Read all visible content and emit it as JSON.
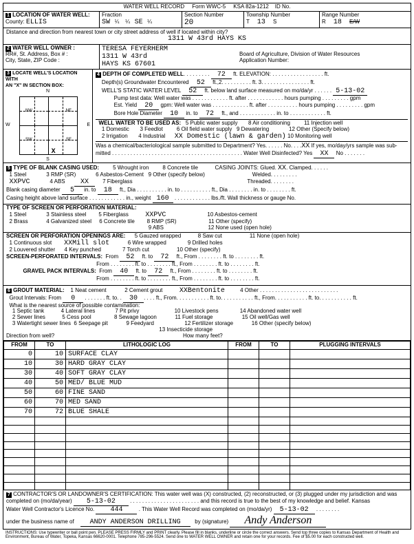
{
  "header": {
    "title": "WATER WELL RECORD",
    "form": "Form WWC-5",
    "ksa": "KSA 82a-1212",
    "id": "ID No."
  },
  "loc": {
    "label": "LOCATION OF WATER WELL:",
    "county_label": "County:",
    "county": "ELLIS",
    "fraction": "Fraction",
    "f1": "SW",
    "q1": "¼",
    "f2": "¼",
    "f3": "SE",
    "q3": "¼",
    "sec_label": "Section Number",
    "sec": "20",
    "twp_label": "Township Number",
    "twp_t": "T",
    "twp": "13",
    "twp_s": "S",
    "rng_label": "Range Number",
    "rng_r": "R",
    "rng": "18",
    "rng_ew": "E/W"
  },
  "dist": {
    "label": "Distance and direction from nearest town or city street address of well if located within city?",
    "value": "1311 W 43rd   HAYS  KS"
  },
  "owner": {
    "label": "WATER WELL OWNER :",
    "name": "TERESA FEYERHERM",
    "addr_label": "RR#, St. Address, Box # :",
    "addr": "1311 W 43rd",
    "csz_label": "City, State, ZIP Code :",
    "csz": "HAYS KS  67601",
    "board": "Board of Agriculture, Division of Water Resources",
    "appno": "Application Number:"
  },
  "sec3": {
    "label": "LOCATE WELL'S LOCATION WITH",
    "sub": "AN \"X\" IN SECTION BOX:",
    "n": "N",
    "s": "S",
    "e": "E",
    "w": "W",
    "nw": "NW",
    "ne": "NE",
    "sw": "SW",
    "se": "SE",
    "x": "X"
  },
  "sec4": {
    "label": "DEPTH OF COMPLETED WELL",
    "depth": "72",
    "elev": "ft. ELEVATION:",
    "gw": "Depth(s) Groundwater Encountered",
    "gw1": "52",
    "swl_label": "WELL'S STATIC WATER LEVEL",
    "swl": "52",
    "swl_after": "ft. below land surface measured on mo/da/yr",
    "swl_date": "5-13-02",
    "pump": "Pump test data:  Well water was",
    "after": "ft. after",
    "hours": "hours pumping",
    "gpm": "gpm",
    "est_label": "Est. Yield",
    "est": "20",
    "est_unit": "gpm:  Well water was",
    "bore_label": "Bore Hole Diameter",
    "bore1": "10",
    "bore_in": "in. to",
    "bore2": "72",
    "bore_ft": "ft., and",
    "bore_into": "in. to",
    "bore_ft2": "ft.",
    "use_label": "WELL WATER TO BE USED AS:",
    "u5": "5 Public water supply",
    "u8": "8 Air conditioning",
    "u11": "11 Injection well",
    "u1": "1 Domestic",
    "u3": "3 Feedlot",
    "u6": "6 Oil field water supply",
    "u9": "9 Dewatering",
    "u12": "12 Other (Specify below)",
    "u2": "2 Irrigation",
    "u4": "4 Industrial",
    "u7": "XX Domestic (lawn & garden)",
    "u10": "10 Monitoring well",
    "chem": "Was a chemical/bacteriological sample submitted to Department? Yes. . . . . . No. . . .",
    "chem_x": "XX",
    "chem2": "If yes, mo/day/yrs sample was sub-",
    "mitted": "mitted",
    "disinfect": "Water Well Disinfected? Yes",
    "dis_x": "XX",
    "no": "No"
  },
  "sec5": {
    "label": "TYPE OF BLANK CASING USED:",
    "c1": "1 Steel",
    "c3": "3 RMP (SR)",
    "c5": "5 Wrought iron",
    "c8": "8 Concrete tile",
    "joints": "CASING JOINTS: Glued.",
    "jx": "XX",
    "clamped": ". Clamped",
    "c6": "6 Asbestos-Cement",
    "c9": "9 Other (specify below)",
    "welded": "Welded",
    "pvc": "XXPVC",
    "c4": "4 ABS",
    "pvc_x": "XX",
    "c7": "7 Fiberglass",
    "threaded": "Threaded",
    "bcd_label": "Blank casing diameter",
    "bcd1": "5",
    "bcd_in": "in. to",
    "bcd2": "18",
    "bcd_ft": "ft., Dia",
    "bcd_in2": "in. to",
    "bcd_ft2": "ft., Dia",
    "bcd_into2": "in. to",
    "bcd_ft3": "ft.",
    "ch_label": "Casing height above land surface",
    "ch_wt": "in., weight",
    "ch_wtv": "160",
    "ch_lbs": "lbs./ft. Wall thickness or gauge No.",
    "screen_label": "TYPE OF SCREEN OR PERFORATION MATERIAL:",
    "s1": "1 Steel",
    "s3": "3 Stainless steel",
    "s5": "5 Fiberglass",
    "s7": "XXPVC",
    "s10": "10 Asbestos-cement",
    "s2": "2 Brass",
    "s4": "4 Galvanized steel",
    "s6": "6 Concrete tile",
    "s8": "8 RMP (SR)",
    "s11": "11 Other (specify)",
    "s9": "9 ABS",
    "s12": "12 None used (open hole)",
    "open_label": "SCREEN OR PERFORATION OPENINGS ARE:",
    "o1": "1 Continuous slot",
    "o3": "XXMill slot",
    "o5": "5 Gauzed wrapped",
    "o8": "8 Saw cut",
    "o11": "11 None (open hole)",
    "o2": "2 Louvered shutter",
    "o4": "4 Key punched",
    "o6": "6 Wire wrapped",
    "o9": "9 Drilled holes",
    "o7": "7 Torch cut",
    "o10": "10 Other (specify)",
    "sperf_label": "SCREEN-PERFORATED INTERVALS:",
    "from": "From",
    "ft_to": "ft. to",
    "ft_from": "ft., From",
    "sp1a": "52",
    "sp1b": "72",
    "grav_label": "GRAVEL PACK INTERVALS:",
    "gp1a": "40",
    "gp1b": "72"
  },
  "sec6": {
    "label": "GROUT MATERIAL:",
    "g1": "1 Neat cement",
    "g2": "2 Cement grout",
    "g3": "XXBentonite",
    "g4": "4 Other",
    "gi_label": "Grout Intervals:  From",
    "gi1": "0",
    "gi2": "30",
    "contam": "What is the nearest source of possible contamination:",
    "c1": "1 Septic tank",
    "c4": "4 Lateral lines",
    "c7": "7 Pit privy",
    "c10": "10 Livestock pens",
    "c14": "14 Abandoned water well",
    "c2": "2 Sewer lines",
    "c5": "5 Cess pool",
    "c8": "8 Sewage lagoon",
    "c11": "11 Fuel storage",
    "c15": "15 Oil well/Gas well",
    "c3": "3 Watertight sewer lines",
    "c6": "6 Seepage pit",
    "c9": "9 Feedyard",
    "c12": "12 Fertilizer storage",
    "c16": "16 Other (specify below)",
    "c13": "13 Insecticide storage",
    "dir": "Direction from well?",
    "many": "How many feet?"
  },
  "log": {
    "h_from": "FROM",
    "h_to": "TO",
    "h_lith": "LITHOLOGIC LOG",
    "h_plug": "PLUGGING INTERVALS",
    "rows": [
      {
        "f": "0",
        "t": "10",
        "d": "SURFACE CLAY"
      },
      {
        "f": "10",
        "t": "30",
        "d": "HARD GRAY CLAY"
      },
      {
        "f": "30",
        "t": "40",
        "d": "SOFT GRAY CLAY"
      },
      {
        "f": "40",
        "t": "50",
        "d": "MED/ BLUE MUD"
      },
      {
        "f": "50",
        "t": "60",
        "d": "FINE SAND"
      },
      {
        "f": "60",
        "t": "70",
        "d": "MED SAND"
      },
      {
        "f": "70",
        "t": "72",
        "d": "BLUE SHALE"
      },
      {
        "f": "",
        "t": "",
        "d": ""
      },
      {
        "f": "",
        "t": "",
        "d": ""
      },
      {
        "f": "",
        "t": "",
        "d": ""
      },
      {
        "f": "",
        "t": "",
        "d": ""
      },
      {
        "f": "",
        "t": "",
        "d": ""
      },
      {
        "f": "",
        "t": "",
        "d": ""
      },
      {
        "f": "",
        "t": "",
        "d": ""
      },
      {
        "f": "",
        "t": "",
        "d": ""
      },
      {
        "f": "",
        "t": "",
        "d": ""
      }
    ]
  },
  "sec7": {
    "label": "CONTRACTOR'S OR LANDOWNER'S CERTIFICATION: This water well was (X) constructed, (2) reconstructed, or (3) plugged under my jurisdiction and was",
    "l2a": "completed on (mo/da/year)",
    "date1": "5-13-02",
    "l2b": "and this record is true to the best of my knowledge and belief. Kansas",
    "l3a": "Water Well Contractor's Licence No.",
    "lic": "444",
    "l3b": ". This Water Well Record was completed on (mo/da/yr)",
    "date2": "5-13-02",
    "l4a": "under the business name of",
    "biz": "ANDY ANDERSON DRILLING",
    "l4b": "by  (signature)",
    "sig": "Andy Anderson"
  },
  "footer": "INSTRUCTIONS: Use typewriter or ball point pen. PLEASE PRESS FIRMLY and PRINT clearly. Please fill in blanks, underline or circle the correct answers. Send top three copies to Kansas Department of Health and Environment, Bureau of Water, Topeka, Kansas 66620-0001. Telephone 785-296-5524. Send one to WATER WELL OWNER and retain one for your records. Fee of $5.00 for each constructed well."
}
